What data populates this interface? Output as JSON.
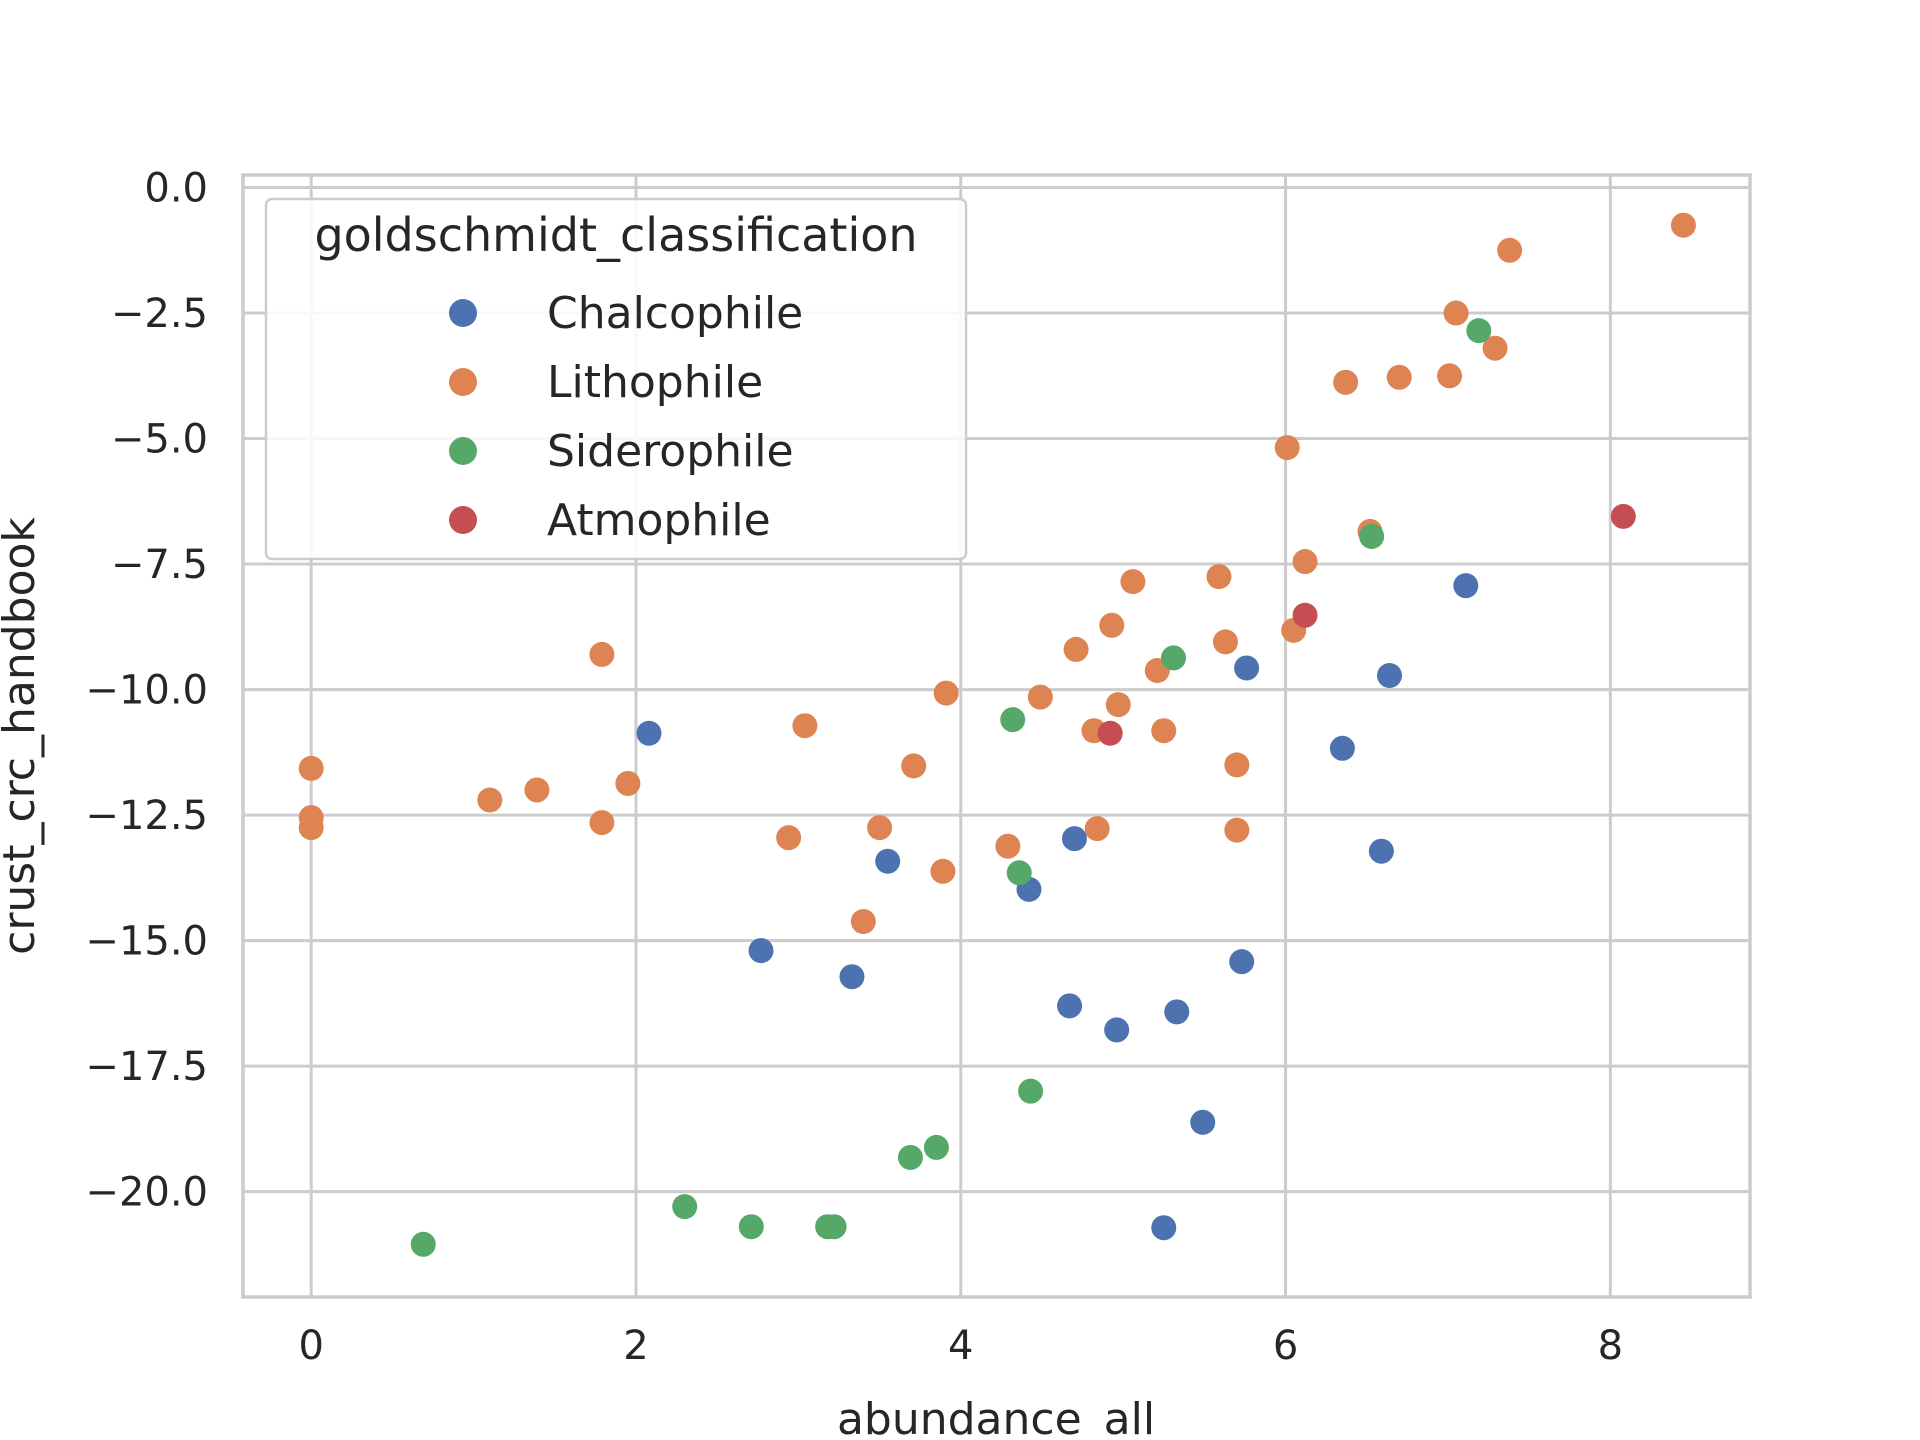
{
  "chart_data": {
    "type": "scatter",
    "xlabel": "abundance_all",
    "ylabel": "crust_crc_handbook",
    "xlim": [
      -0.42,
      8.86
    ],
    "ylim": [
      -22.1,
      0.25
    ],
    "x_ticks": [
      0,
      2,
      4,
      6,
      8
    ],
    "x_tick_labels": [
      "0",
      "2",
      "4",
      "6",
      "8"
    ],
    "y_ticks": [
      0,
      -2.5,
      -5,
      -7.5,
      -10,
      -12.5,
      -15,
      -17.5,
      -20
    ],
    "y_tick_labels": [
      "0.0",
      "−2.5",
      "−5.0",
      "−7.5",
      "−10.0",
      "−12.5",
      "−15.0",
      "−17.5",
      "−20.0"
    ],
    "grid": true,
    "legend": {
      "title": "goldschmidt_classification",
      "position": "top-left"
    },
    "series": [
      {
        "name": "Chalcophile",
        "color": "#4c72b0",
        "points": [
          [
            2.08,
            -10.87
          ],
          [
            2.77,
            -15.2
          ],
          [
            3.33,
            -15.72
          ],
          [
            3.55,
            -13.42
          ],
          [
            4.42,
            -13.98
          ],
          [
            4.7,
            -12.97
          ],
          [
            4.67,
            -16.3
          ],
          [
            4.96,
            -16.78
          ],
          [
            5.33,
            -16.42
          ],
          [
            5.25,
            -20.72
          ],
          [
            5.49,
            -18.62
          ],
          [
            5.73,
            -15.42
          ],
          [
            5.76,
            -9.57
          ],
          [
            6.35,
            -11.17
          ],
          [
            6.59,
            -13.22
          ],
          [
            6.64,
            -9.72
          ],
          [
            7.11,
            -7.93
          ]
        ]
      },
      {
        "name": "Lithophile",
        "color": "#dd8452",
        "points": [
          [
            0.0,
            -11.57
          ],
          [
            0.0,
            -12.55
          ],
          [
            0.0,
            -12.75
          ],
          [
            1.1,
            -12.2
          ],
          [
            1.39,
            -12.0
          ],
          [
            1.79,
            -9.3
          ],
          [
            1.79,
            -12.65
          ],
          [
            1.95,
            -11.87
          ],
          [
            2.94,
            -12.95
          ],
          [
            3.04,
            -10.72
          ],
          [
            3.4,
            -14.62
          ],
          [
            3.5,
            -12.75
          ],
          [
            3.71,
            -11.52
          ],
          [
            3.89,
            -13.62
          ],
          [
            3.91,
            -10.07
          ],
          [
            4.29,
            -13.12
          ],
          [
            4.49,
            -10.15
          ],
          [
            4.71,
            -9.2
          ],
          [
            4.82,
            -10.82
          ],
          [
            4.84,
            -12.77
          ],
          [
            4.93,
            -8.72
          ],
          [
            4.97,
            -10.3
          ],
          [
            5.06,
            -7.85
          ],
          [
            5.21,
            -9.62
          ],
          [
            5.25,
            -10.82
          ],
          [
            5.59,
            -7.75
          ],
          [
            5.63,
            -9.05
          ],
          [
            5.7,
            -11.5
          ],
          [
            5.7,
            -12.8
          ],
          [
            6.01,
            -5.18
          ],
          [
            6.05,
            -8.82
          ],
          [
            6.12,
            -7.45
          ],
          [
            6.37,
            -3.88
          ],
          [
            6.52,
            -6.85
          ],
          [
            6.7,
            -3.78
          ],
          [
            7.01,
            -3.75
          ],
          [
            7.05,
            -2.5
          ],
          [
            7.29,
            -3.2
          ],
          [
            7.38,
            -1.25
          ],
          [
            8.45,
            -0.75
          ]
        ]
      },
      {
        "name": "Siderophile",
        "color": "#55a868",
        "points": [
          [
            0.69,
            -21.05
          ],
          [
            2.3,
            -20.3
          ],
          [
            2.71,
            -20.7
          ],
          [
            3.18,
            -20.7
          ],
          [
            3.22,
            -20.7
          ],
          [
            3.69,
            -19.32
          ],
          [
            3.85,
            -19.12
          ],
          [
            4.32,
            -10.6
          ],
          [
            4.36,
            -13.65
          ],
          [
            4.43,
            -18.0
          ],
          [
            5.31,
            -9.37
          ],
          [
            6.53,
            -6.95
          ],
          [
            7.19,
            -2.85
          ]
        ]
      },
      {
        "name": "Atmophile",
        "color": "#c44e52",
        "points": [
          [
            4.92,
            -10.87
          ],
          [
            6.12,
            -8.52
          ],
          [
            8.08,
            -6.55
          ]
        ]
      }
    ]
  }
}
